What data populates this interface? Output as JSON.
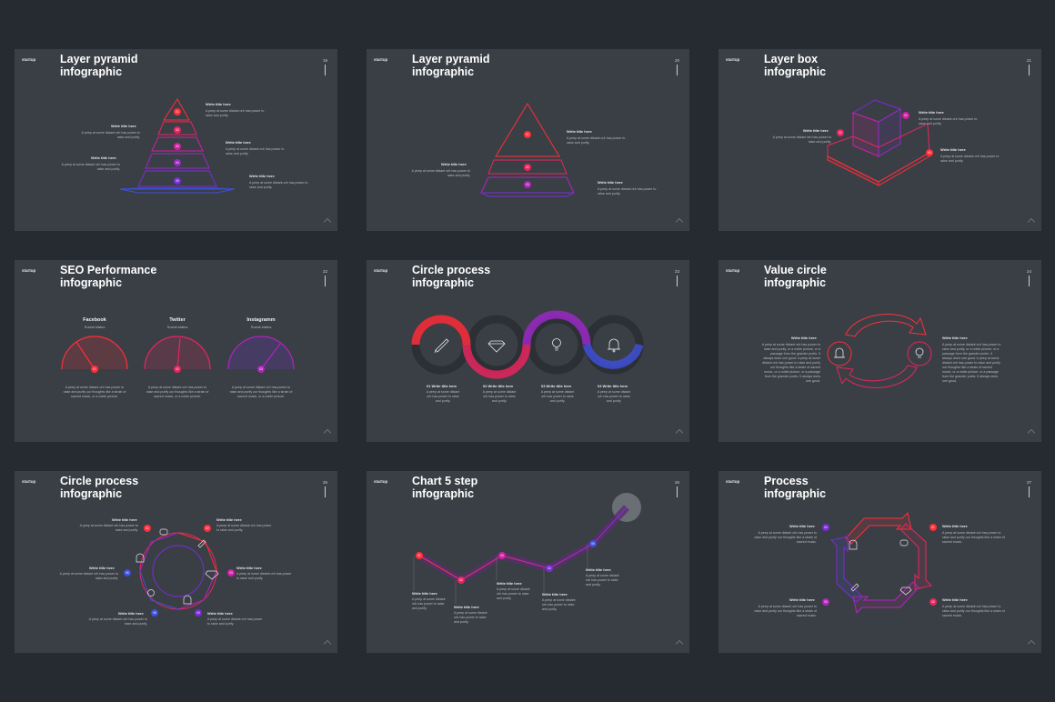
{
  "brand": "startup",
  "wt": "Write title here",
  "b1": "A peep at some distant orb has power to raise and purify.",
  "b2": "A peep at some distant orb has power to raise and purify our thoughts like a strain of sacred music, or a noble picture.",
  "b3": "A peep at some distant orb has power to raise and purify, or a noble picture, or a passage from the grander poets. It always does one good. A peep at some distant orb has power to raise and purify our thoughts like a strain of sacred music, or a noble picture, or a passage from the grander poets. It always does one good.",
  "b4": "A peep at some distant orb has power to raise and purify our thoughts like a strain of sacred music.",
  "colors": {
    "red": "#ff2e3a",
    "magenta": "#d11fa3",
    "purple": "#7a2cd6",
    "blue": "#3f4fd8"
  },
  "slides": [
    {
      "page": "19",
      "title1": "Layer pyramid",
      "title2": "infographic",
      "nums": [
        "01",
        "02",
        "03",
        "04",
        "05"
      ]
    },
    {
      "page": "20",
      "title1": "Layer pyramid",
      "title2": "infographic",
      "nums": [
        "01",
        "02",
        "03"
      ]
    },
    {
      "page": "21",
      "title1": "Layer box",
      "title2": "infographic",
      "nums": [
        "01",
        "02",
        "03"
      ]
    },
    {
      "page": "22",
      "title1": "SEO Performance",
      "title2": "infographic",
      "gauges": [
        {
          "name": "Facebook",
          "status": "Social status",
          "num": "01"
        },
        {
          "name": "Twitter",
          "status": "Social status",
          "num": "02"
        },
        {
          "name": "Instagramm",
          "status": "Social status",
          "num": "03"
        }
      ]
    },
    {
      "page": "23",
      "title1": "Circle process",
      "title2": "infographic",
      "steps": [
        "01 Write title here",
        "02 Write title here",
        "03 Write title here",
        "04 Write title here"
      ]
    },
    {
      "page": "24",
      "title1": "Value circle",
      "title2": "infographic"
    },
    {
      "page": "25",
      "title1": "Circle process",
      "title2": "infographic",
      "nums": [
        "01",
        "02",
        "03",
        "04",
        "05",
        "06"
      ]
    },
    {
      "page": "26",
      "title1": "Chart 5 step",
      "title2": "infographic",
      "nums": [
        "01",
        "02",
        "03",
        "04",
        "05"
      ]
    },
    {
      "page": "27",
      "title1": "Process",
      "title2": "infographic",
      "nums": [
        "01",
        "02",
        "03",
        "04"
      ]
    }
  ]
}
